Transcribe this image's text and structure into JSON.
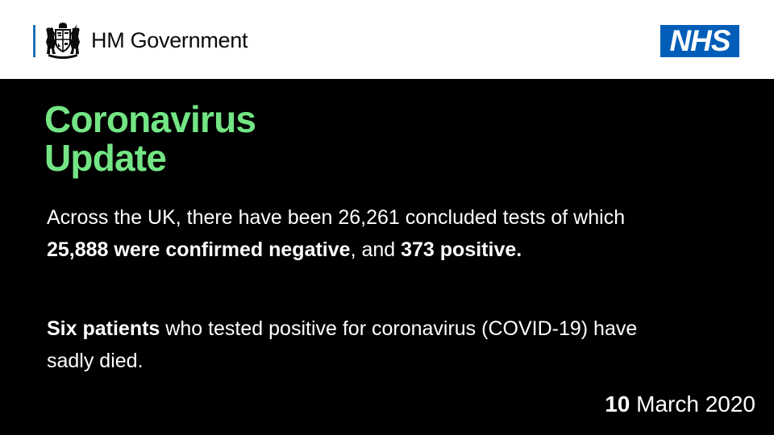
{
  "header": {
    "government_name": "HM Government",
    "crest_icon": "royal-coat-of-arms-icon",
    "nhs_logo_text": "NHS"
  },
  "title": {
    "line1": "Coronavirus",
    "line2": "Update"
  },
  "tests_paragraph": {
    "intro": "Across the UK, there have been 26,261 concluded tests of which ",
    "negative": "25,888 were confirmed negative",
    "middle": ", and ",
    "positive": "373 positive."
  },
  "deaths_paragraph": {
    "bold": "Six patients",
    "rest": " who tested positive for coronavirus (COVID-19) have sadly died."
  },
  "date": {
    "day": "10",
    "rest": " March 2020"
  },
  "colors": {
    "background": "#000000",
    "header_background": "#ffffff",
    "title_green": "#73e584",
    "nhs_blue": "#005eb8",
    "gov_blue_bar": "#1d70b8"
  }
}
